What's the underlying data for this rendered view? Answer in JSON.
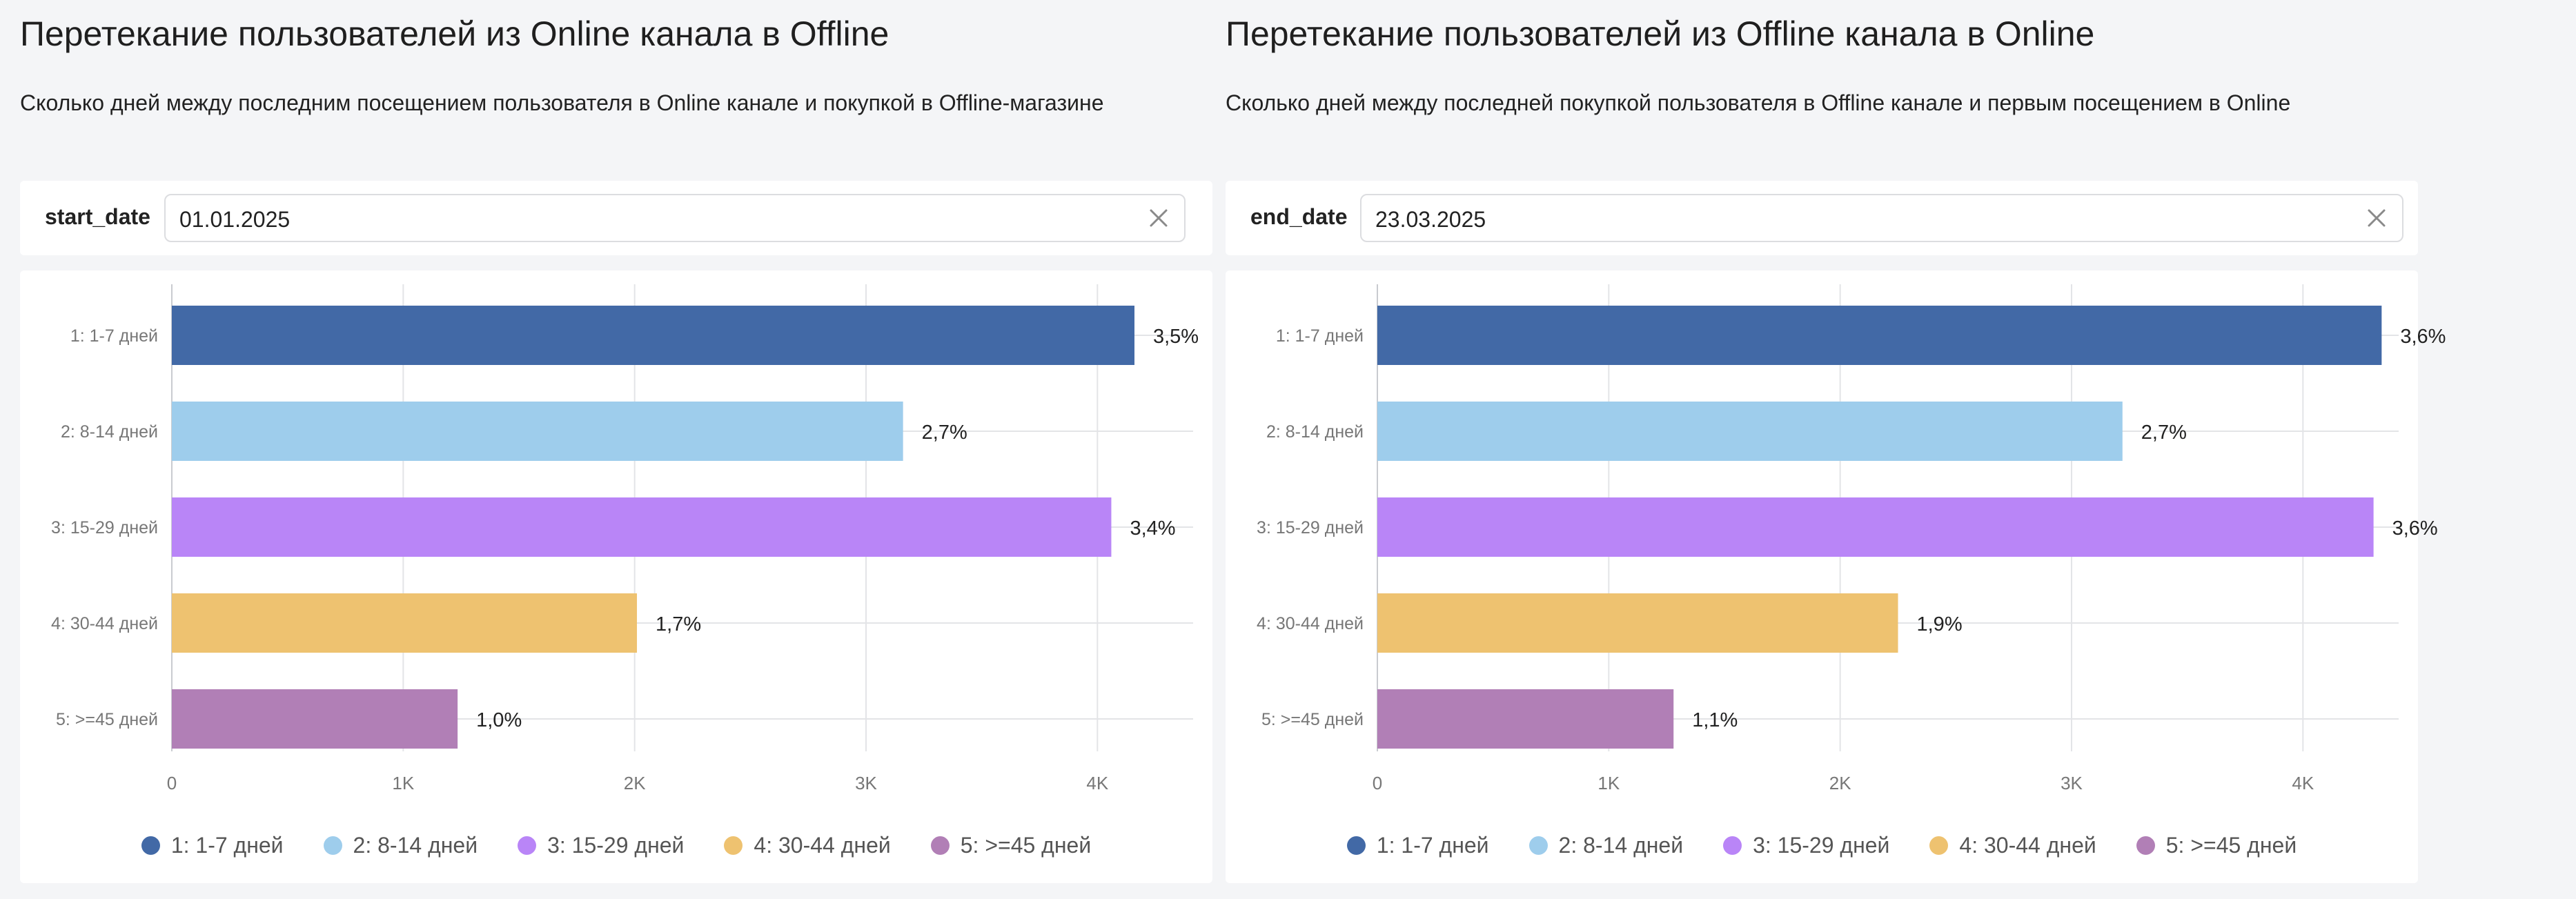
{
  "panels": [
    {
      "title": "Перетекание пользователей из Online канала в Offline",
      "subtitle": "Сколько дней между последним посещением пользователя в Online канале и покупкой в Offline-магазине",
      "filter": {
        "label": "start_date",
        "value": "01.01.2025"
      }
    },
    {
      "title": "Перетекание пользователей из Offline канала в Online",
      "subtitle": "Сколько дней между последней покупкой пользователя в Offline канале и первым посещением в Online",
      "filter": {
        "label": "end_date",
        "value": "23.03.2025"
      }
    }
  ],
  "icons": {
    "clear": "close-icon",
    "legend_marker": "circle-icon"
  },
  "colors": {
    "1: 1-7 дней": "#4269a6",
    "2: 8-14 дней": "#9ecdec",
    "3: 15-29 дней": "#b985f7",
    "4: 30-44 дней": "#eec270",
    "5: >=45 дней": "#b17fb6"
  },
  "chart_data": [
    {
      "type": "bar",
      "orientation": "horizontal",
      "categories": [
        "1: 1-7 дней",
        "2: 8-14 дней",
        "3: 15-29 дней",
        "4: 30-44 дней",
        "5: >=45 дней"
      ],
      "values": [
        4160,
        3160,
        4060,
        2010,
        1235
      ],
      "data_labels": [
        "3,5%",
        "2,7%",
        "3,4%",
        "1,7%",
        "1,0%"
      ],
      "xticks": [
        "0",
        "1K",
        "2K",
        "3K",
        "4K"
      ],
      "xlim": [
        0,
        4500
      ],
      "grid": true,
      "legend": [
        "1: 1-7 дней",
        "2: 8-14 дней",
        "3: 15-29 дней",
        "4: 30-44 дней",
        "5: >=45 дней"
      ],
      "legend_position": "bottom"
    },
    {
      "type": "bar",
      "orientation": "horizontal",
      "categories": [
        "1: 1-7 дней",
        "2: 8-14 дней",
        "3: 15-29 дней",
        "4: 30-44 дней",
        "5: >=45 дней"
      ],
      "values": [
        4340,
        3220,
        4305,
        2250,
        1280
      ],
      "data_labels": [
        "3,6%",
        "2,7%",
        "3,6%",
        "1,9%",
        "1,1%"
      ],
      "xticks": [
        "0",
        "1K",
        "2K",
        "3K",
        "4K"
      ],
      "xlim": [
        0,
        4500
      ],
      "grid": true,
      "legend": [
        "1: 1-7 дней",
        "2: 8-14 дней",
        "3: 15-29 дней",
        "4: 30-44 дней",
        "5: >=45 дней"
      ],
      "legend_position": "bottom"
    }
  ]
}
